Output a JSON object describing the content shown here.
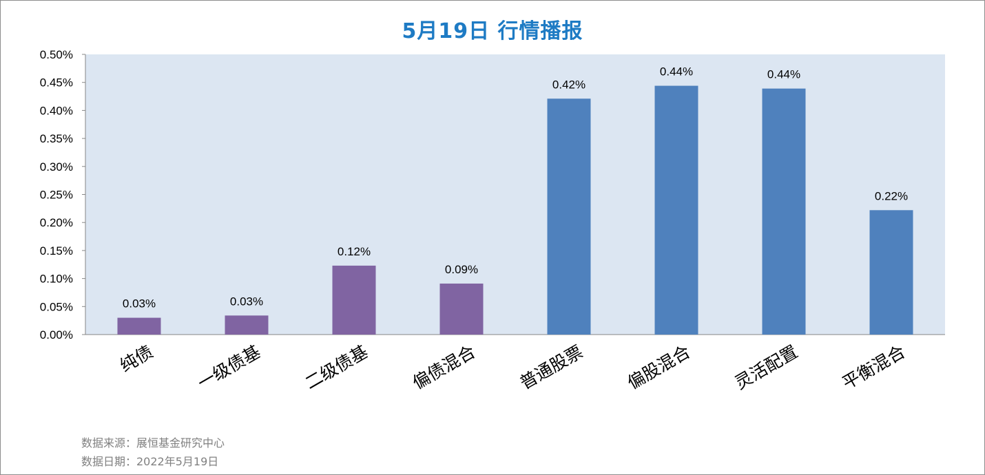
{
  "chart_data": {
    "type": "bar",
    "title": "5月19日  行情播报",
    "categories": [
      "纯债",
      "一级债基",
      "二级债基",
      "偏债混合",
      "普通股票",
      "偏股混合",
      "灵活配置",
      "平衡混合"
    ],
    "values": [
      0.03,
      0.034,
      0.123,
      0.091,
      0.421,
      0.444,
      0.439,
      0.222
    ],
    "data_labels": [
      "0.03%",
      "0.03%",
      "0.12%",
      "0.09%",
      "0.42%",
      "0.44%",
      "0.44%",
      "0.22%"
    ],
    "bar_colors": [
      "#8064a2",
      "#8064a2",
      "#8064a2",
      "#8064a2",
      "#4f81bd",
      "#4f81bd",
      "#4f81bd",
      "#4f81bd"
    ],
    "ylim": [
      0,
      0.5
    ],
    "yticks": [
      0,
      0.05,
      0.1,
      0.15,
      0.2,
      0.25,
      0.3,
      0.35,
      0.4,
      0.45,
      0.5
    ],
    "ytick_labels": [
      "0.00%",
      "0.05%",
      "0.10%",
      "0.15%",
      "0.20%",
      "0.25%",
      "0.30%",
      "0.35%",
      "0.40%",
      "0.45%",
      "0.50%"
    ],
    "plot_background": "#dce6f2",
    "grid": false,
    "legend": "none",
    "xlabel": "",
    "ylabel": ""
  },
  "footer": {
    "source": "数据来源：展恒基金研究中心",
    "date": "数据日期：2022年5月19日"
  },
  "colors": {
    "title": "#1e7bc4",
    "footer_text": "#808080",
    "frame_border": "#8c8c8c"
  }
}
